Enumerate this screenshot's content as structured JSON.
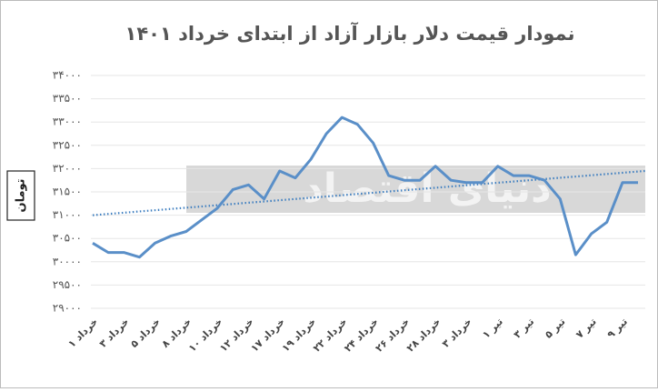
{
  "chart_data": {
    "type": "line",
    "title": "نمودار قیمت دلار بازار آزاد از ابتدای خرداد ۱۴۰۱",
    "y_label": "تومان",
    "watermark": "دنیای اقتصاد",
    "categories": [
      "خرداد ۱",
      null,
      "خرداد ۳",
      null,
      "خرداد ۵",
      null,
      "خرداد ۸",
      null,
      "خرداد ۱۰",
      null,
      "خرداد ۱۲",
      null,
      "خرداد ۱۷",
      null,
      "خرداد ۱۹",
      null,
      "خرداد ۲۲",
      null,
      "خرداد ۲۴",
      null,
      "خرداد ۲۶",
      null,
      "خرداد ۲۸",
      null,
      "خرداد ۳",
      null,
      "تیر ۱",
      null,
      "تیر ۳",
      null,
      "تیر ۵",
      null,
      "تیر ۷",
      null,
      "تیر ۹",
      null
    ],
    "series": [
      {
        "color": "#5a8fc8",
        "values": [
          30400,
          30200,
          30200,
          30100,
          30400,
          30550,
          30650,
          30900,
          31150,
          31550,
          31650,
          31350,
          31950,
          31800,
          32200,
          32750,
          33100,
          32950,
          32550,
          31850,
          31750,
          31750,
          32050,
          31750,
          31700,
          31700,
          32050,
          31850,
          31850,
          31750,
          31350,
          30150,
          30600,
          30850,
          31700,
          31700
        ]
      }
    ],
    "trendline": {
      "color": "#3f7fc0",
      "values": [
        31000,
        31950
      ]
    },
    "ylim": [
      29000,
      34000
    ],
    "yticks": [
      {
        "value": 29000,
        "label": "۲۹۰۰۰"
      },
      {
        "value": 29500,
        "label": "۲۹۵۰۰"
      },
      {
        "value": 30000,
        "label": "۳۰۰۰۰"
      },
      {
        "value": 30500,
        "label": "۳۰۵۰۰"
      },
      {
        "value": 31000,
        "label": "۳۱۰۰۰"
      },
      {
        "value": 31500,
        "label": "۳۱۵۰۰"
      },
      {
        "value": 32000,
        "label": "۳۲۰۰۰"
      },
      {
        "value": 32500,
        "label": "۳۲۵۰۰"
      },
      {
        "value": 33000,
        "label": "۳۳۰۰۰"
      },
      {
        "value": 33500,
        "label": "۳۳۵۰۰"
      },
      {
        "value": 34000,
        "label": "۳۴۰۰۰"
      }
    ],
    "grid": true
  }
}
